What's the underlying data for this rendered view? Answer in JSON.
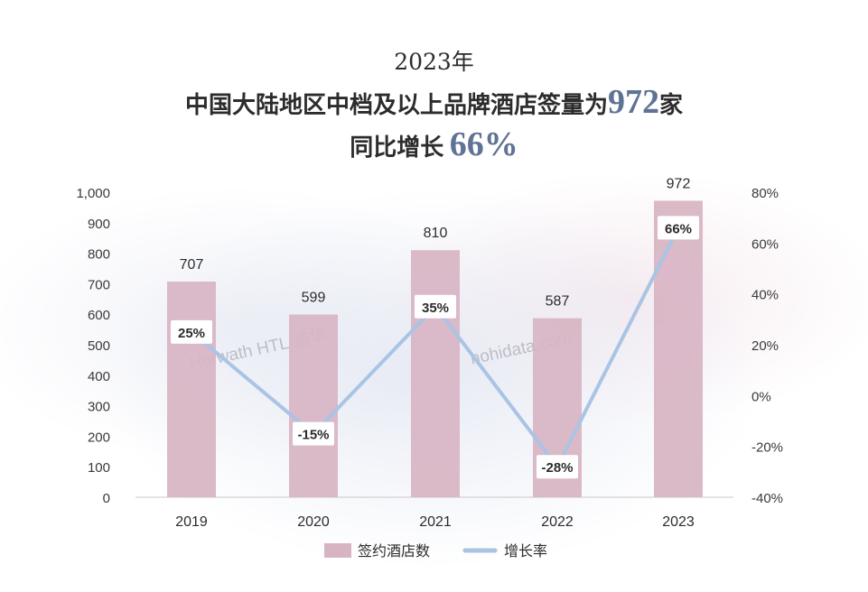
{
  "title": {
    "line1": "2023年",
    "line2_prefix": "中国大陆地区中档及以上品牌酒店签量为",
    "line2_value": "972",
    "line2_suffix": "家",
    "line3_prefix": "同比增长",
    "line3_value": "66%"
  },
  "watermarks": {
    "horwath": "Horwath HTL 浩华",
    "hohidata": "hohidata.com"
  },
  "colors": {
    "bar": "#d8b4c3",
    "line": "#a9c4e4",
    "highlight": "#5f7394"
  },
  "chart_data": {
    "type": "bar",
    "categories": [
      "2019",
      "2020",
      "2021",
      "2022",
      "2023"
    ],
    "series": [
      {
        "name": "签约酒店数",
        "type": "bar",
        "axis": "left",
        "values": [
          707,
          599,
          810,
          587,
          972
        ],
        "labels": [
          "707",
          "599",
          "810",
          "587",
          "972"
        ]
      },
      {
        "name": "增长率",
        "type": "line",
        "axis": "right",
        "values": [
          25,
          -15,
          35,
          -28,
          66
        ],
        "labels": [
          "25%",
          "-15%",
          "35%",
          "-28%",
          "66%"
        ]
      }
    ],
    "y_left": {
      "min": 0,
      "max": 1000,
      "ticks": [
        0,
        100,
        200,
        300,
        400,
        500,
        600,
        700,
        800,
        900,
        1000
      ],
      "tick_labels": [
        "0",
        "100",
        "200",
        "300",
        "400",
        "500",
        "600",
        "700",
        "800",
        "900",
        "1,000"
      ]
    },
    "y_right": {
      "min": -40,
      "max": 80,
      "ticks": [
        -40,
        -20,
        0,
        20,
        40,
        60,
        80
      ],
      "tick_labels": [
        "-40%",
        "-20%",
        "0%",
        "20%",
        "40%",
        "60%",
        "80%"
      ]
    },
    "legend": {
      "position": "bottom",
      "items": [
        "签约酒店数",
        "增长率"
      ]
    },
    "grid": false
  }
}
